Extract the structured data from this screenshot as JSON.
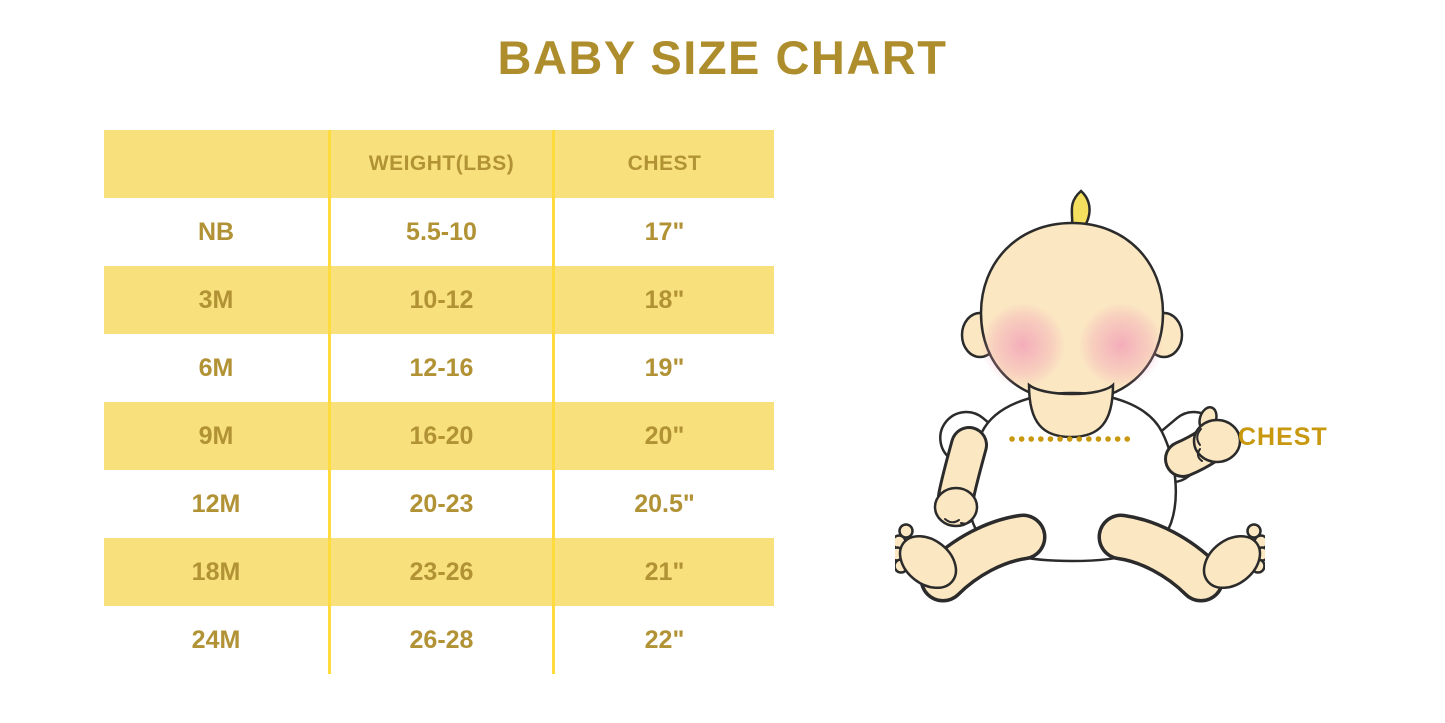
{
  "page": {
    "title": "BABY SIZE CHART"
  },
  "chart_data": {
    "type": "table",
    "title": "BABY SIZE CHART",
    "display_headers": [
      "",
      "WEIGHT(LBS)",
      "CHEST"
    ],
    "columns": [
      "Size",
      "Weight (lbs)",
      "Chest"
    ],
    "rows": [
      [
        "NB",
        "5.5-10",
        "17\""
      ],
      [
        "3M",
        "10-12",
        "18\""
      ],
      [
        "6M",
        "12-16",
        "19\""
      ],
      [
        "9M",
        "16-20",
        "20\""
      ],
      [
        "12M",
        "20-23",
        "20.5\""
      ],
      [
        "18M",
        "23-26",
        "21\""
      ],
      [
        "24M",
        "26-28",
        "22\""
      ]
    ],
    "layout_hints": {
      "striped_rows": "header and alternating rows yellow",
      "grid": "two vertical gold dividers, no outer border"
    }
  },
  "illustration": {
    "chest_label": "CHEST",
    "figure": "cartoon baby sitting, white shirt, dotted measurement line across chest"
  },
  "colors": {
    "title_gold": "#AE8E2C",
    "table_text_gold": "#B19235",
    "row_yellow": "#F8E17C",
    "divider_yellow": "#FFDB3D",
    "annotation_gold": "#C8980F",
    "skin": "#FBE7C2",
    "blush": "#F2A3B8",
    "hair": "#F5DF5E",
    "outline": "#2B2B2B"
  }
}
